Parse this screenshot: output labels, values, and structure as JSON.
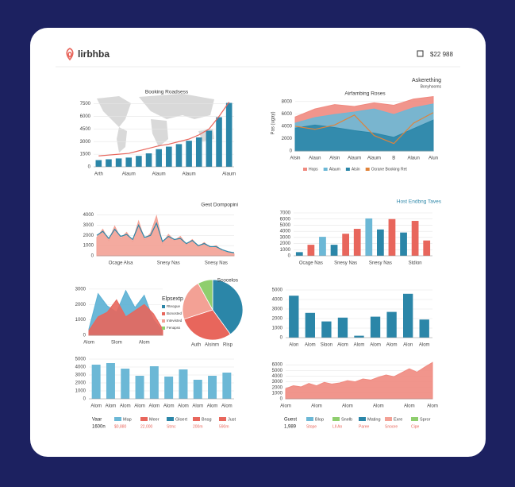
{
  "header": {
    "logo": "lirbhba",
    "stat": "$22 988"
  },
  "chart_data": [
    {
      "type": "bar",
      "title": "Booking Roadsess",
      "categories": [
        "Arth",
        null,
        null,
        "Alaum",
        null,
        null,
        "Alaum",
        null,
        null,
        "Alaum",
        null,
        null,
        null,
        "Alaum"
      ],
      "series": [
        {
          "color": "#2b86a8",
          "mark": "bar",
          "values": [
            800,
            900,
            1000,
            1100,
            1300,
            1600,
            2100,
            2400,
            2700,
            3100,
            3500,
            4300,
            5900,
            7600
          ]
        },
        {
          "color": "#e8665c",
          "mark": "line",
          "values": [
            1300,
            1400,
            1500,
            1600,
            1900,
            2200,
            2500,
            2700,
            3000,
            3300,
            3800,
            4500,
            6000,
            7700
          ]
        }
      ],
      "ylim": [
        0,
        8500
      ],
      "yticks": [
        0,
        1500,
        3000,
        4500,
        6000,
        7500
      ],
      "grid": true
    },
    {
      "type": "area",
      "title": "Airfambing Roses",
      "subtitle": "Askerething",
      "note": "Bonyhooms",
      "ylabel": "Pas (ugay)",
      "categories": [
        "Alsin",
        "Alaun",
        "Alsin",
        "Alaum",
        "Alaum",
        "B",
        "Alaun",
        "Alun"
      ],
      "series": [
        {
          "name": "Hops",
          "color": "#f08a80",
          "mark": "area",
          "values": [
            5500,
            6800,
            7500,
            7200,
            7800,
            7400,
            8400,
            8800
          ]
        },
        {
          "name": "Alaum",
          "color": "#6cb8d6",
          "mark": "area",
          "values": [
            4500,
            5400,
            5900,
            6300,
            6800,
            5900,
            7000,
            7600
          ]
        },
        {
          "name": "Alsin",
          "color": "#2b86a8",
          "mark": "area",
          "values": [
            3700,
            4200,
            3800,
            3300,
            2900,
            2200,
            3600,
            5000
          ]
        },
        {
          "name": "Ocrane Booking Ret",
          "color": "#e0833a",
          "mark": "line",
          "values": [
            4000,
            3500,
            4200,
            5800,
            2500,
            1200,
            4500,
            6200
          ]
        }
      ],
      "ylim": [
        0,
        9000
      ],
      "yticks": [
        0,
        2000,
        4000,
        6000,
        8000
      ],
      "grid": true,
      "legend": "bottom"
    },
    {
      "type": "area",
      "title": "Gest Dompopini",
      "categories": [
        null,
        null,
        null,
        null,
        "Ocage Alsa",
        null,
        null,
        null,
        null,
        null,
        null,
        null,
        "Snesy Nas",
        null,
        null,
        null,
        null,
        null,
        null,
        null,
        "Snesy Nas",
        null,
        null,
        null
      ],
      "series": [
        {
          "color": "#f3a195",
          "mark": "area",
          "values": [
            1800,
            2600,
            1500,
            2900,
            1700,
            2300,
            1400,
            3400,
            1600,
            2200,
            3900,
            1200,
            2100,
            1500,
            1900,
            1100,
            1600,
            900,
            1300,
            800,
            1000,
            500,
            300,
            200
          ]
        },
        {
          "color": "#2b86a8",
          "mark": "line",
          "values": [
            2000,
            2400,
            1700,
            2600,
            1900,
            2100,
            1600,
            3000,
            1800,
            2000,
            3200,
            1400,
            1900,
            1600,
            1700,
            1200,
            1500,
            1000,
            1200,
            900,
            900,
            600,
            400,
            300
          ]
        }
      ],
      "ylim": [
        0,
        4200
      ],
      "yticks": [
        0,
        1000,
        2000,
        3000,
        4000
      ],
      "grid": true
    },
    {
      "type": "bar",
      "title": "Host Endbng Taves",
      "categories": [
        null,
        "Ocage Nas",
        null,
        null,
        "Snesy Nas",
        null,
        null,
        "Snesy Nas",
        null,
        null,
        "Stdion",
        null
      ],
      "series": [
        {
          "mark": "bar",
          "colors": [
            "#2b86a8",
            "#e8665c",
            "#6cb8d6",
            "#2b86a8",
            "#e8665c",
            "#e8665c",
            "#6cb8d6",
            "#2b86a8",
            "#e8665c",
            "#2b86a8",
            "#e8665c",
            "#e8665c"
          ],
          "values": [
            600,
            1800,
            3100,
            1800,
            3600,
            4400,
            6100,
            4300,
            6000,
            3800,
            5700,
            2500
          ]
        }
      ],
      "ylim": [
        0,
        7000
      ],
      "yticks": [
        0,
        1000,
        2000,
        3000,
        4000,
        5000,
        6000,
        7000
      ],
      "grid": true
    },
    {
      "type": "area",
      "categories": [
        "Alom",
        null,
        null,
        "Slom",
        null,
        null,
        "Alom",
        null,
        null
      ],
      "series": [
        {
          "color": "#5bb0d4",
          "mark": "area",
          "values": [
            400,
            2700,
            1900,
            1500,
            2900,
            1800,
            2600,
            1000,
            300
          ]
        },
        {
          "color": "#e8665c",
          "mark": "area",
          "values": [
            300,
            1200,
            1500,
            2300,
            1200,
            1600,
            2000,
            1400,
            400
          ]
        }
      ],
      "ylim": [
        0,
        3200
      ],
      "yticks": [
        0,
        1000,
        2000,
        3000
      ],
      "grid": true
    },
    {
      "type": "pie",
      "title": "Scocelos",
      "legend_title": "Elpsextp",
      "categories": [
        "Rteogue",
        "Bonosted",
        "Intevisted",
        "Fenapss"
      ],
      "values": [
        40,
        30,
        22,
        8
      ],
      "colors": [
        "#2b86a8",
        "#e8665c",
        "#f3a195",
        "#8fce6e"
      ],
      "footer_labels": [
        "Auth",
        "Alsinm",
        "Risp"
      ]
    },
    {
      "type": "bar",
      "categories": [
        "Alon",
        "Alom",
        "Sloon",
        "Alom",
        "Alom",
        "Alom",
        "Alom",
        "Alon",
        "Alom"
      ],
      "series": [
        {
          "color": "#2b86a8",
          "mark": "bar",
          "values": [
            4400,
            2600,
            1700,
            2100,
            200,
            2200,
            2700,
            4600,
            1900
          ]
        }
      ],
      "ylim": [
        0,
        5000
      ],
      "yticks": [
        0,
        1000,
        2000,
        3000,
        4000,
        5000
      ],
      "grid": true
    },
    {
      "type": "bar",
      "categories": [
        "Alom",
        "Alom",
        "Alom",
        "Alom",
        "Alom",
        "Alom",
        "Alom",
        "Alom",
        "Alom",
        "Alom"
      ],
      "series": [
        {
          "color": "#6cb8d6",
          "mark": "bar",
          "values": [
            4300,
            4500,
            3800,
            2900,
            4100,
            2800,
            3700,
            2400,
            2900,
            3300
          ]
        }
      ],
      "ylim": [
        0,
        5000
      ],
      "yticks": [
        0,
        1000,
        2000,
        3000,
        4000,
        5000
      ],
      "grid": true
    },
    {
      "type": "area",
      "categories": [
        "Alom",
        null,
        null,
        null,
        "Alom",
        null,
        null,
        null,
        "Alom",
        null,
        null,
        null,
        "Alom",
        null,
        null,
        null,
        "Alom",
        null,
        null,
        "Alom"
      ],
      "series": [
        {
          "color": "#f08a80",
          "mark": "area",
          "values": [
            1800,
            2300,
            2100,
            2700,
            2300,
            2900,
            2600,
            2800,
            3200,
            3000,
            3500,
            3300,
            3800,
            4200,
            3900,
            4600,
            5300,
            4700,
            5600,
            6400
          ]
        }
      ],
      "ylim": [
        0,
        7000
      ],
      "yticks": [
        0,
        1000,
        2000,
        3000,
        4000,
        5000,
        6000
      ],
      "grid": true
    }
  ],
  "footer": [
    {
      "title": "Vaar",
      "value": "1600n",
      "items": [
        {
          "name": "Map",
          "color": "#6cb8d6",
          "value": "$0,880"
        },
        {
          "name": "Meer",
          "color": "#e8665c",
          "value": "22,000"
        },
        {
          "name": "Gloert",
          "color": "#2b86a8",
          "value": "Strnc"
        },
        {
          "name": "Bnsg",
          "color": "#e8665c",
          "value": "200m"
        },
        {
          "name": "Just",
          "color": "#e8665c",
          "value": "590m"
        }
      ]
    },
    {
      "title": "Guest",
      "value": "1,989",
      "items": [
        {
          "name": "Blop",
          "color": "#6cb8d6",
          "value": "Stope"
        },
        {
          "name": "Snelb",
          "color": "#8fce6e",
          "value": "Lll An"
        },
        {
          "name": "Mating",
          "color": "#2b86a8",
          "value": "Paree"
        },
        {
          "name": "Exre",
          "color": "#f3a195",
          "value": "Snoore"
        },
        {
          "name": "Spror",
          "color": "#8fce6e",
          "value": "Cipe"
        }
      ]
    }
  ]
}
